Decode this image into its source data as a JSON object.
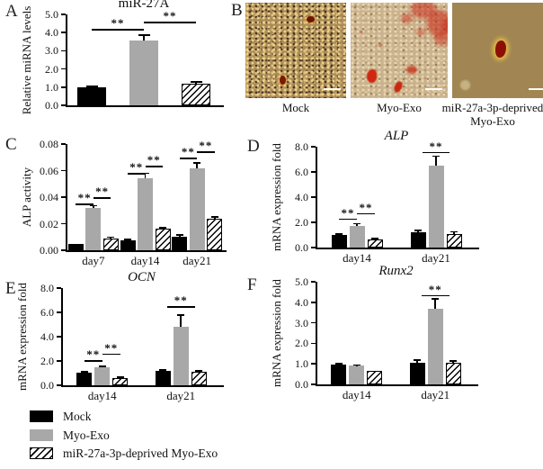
{
  "figure": {
    "panel_labels": [
      "A",
      "B",
      "C",
      "D",
      "E",
      "F"
    ],
    "colors": {
      "bar_black": "#000000",
      "bar_gray": "#a8a8a8",
      "hatch_fg": "#000000",
      "hatch_bg": "#ffffff",
      "stain_red": "#c2331d",
      "axis": "#000000"
    },
    "legend": [
      {
        "label": "Mock",
        "style": "black"
      },
      {
        "label": "Myo-Exo",
        "style": "gray"
      },
      {
        "label": "miR-27a-3p-deprived Myo-Exo",
        "style": "hatch"
      }
    ],
    "significance_symbol": "**"
  },
  "microscopy": {
    "panel": "B",
    "images": [
      {
        "caption": "Mock",
        "caption2": ""
      },
      {
        "caption": "Myo-Exo",
        "caption2": ""
      },
      {
        "caption": "miR-27a-3p-deprived",
        "caption2": "Myo-Exo"
      }
    ]
  },
  "chart_data": [
    {
      "panel": "A",
      "type": "bar",
      "title": "miR-27A",
      "title_style": "normal",
      "ylabel": "Relative miRNA levels",
      "ylim": [
        0,
        5
      ],
      "yticks": [
        "0.0",
        "1.0",
        "2.0",
        "3.0",
        "4.0",
        "5.0"
      ],
      "grid": false,
      "categories": [
        ""
      ],
      "series": [
        {
          "name": "Mock",
          "style": "black",
          "values": [
            0.98
          ],
          "errors": [
            0.06
          ]
        },
        {
          "name": "Myo-Exo",
          "style": "gray",
          "values": [
            3.55
          ],
          "errors": [
            0.3
          ]
        },
        {
          "name": "miR-27a-3p-deprived Myo-Exo",
          "style": "hatch",
          "values": [
            1.2
          ],
          "errors": [
            0.1
          ]
        }
      ],
      "sig": [
        {
          "group": 0,
          "from": 0,
          "to": 1,
          "y": 4.2,
          "label": "**"
        },
        {
          "group": 0,
          "from": 1,
          "to": 2,
          "y": 4.6,
          "label": "**"
        }
      ]
    },
    {
      "panel": "C",
      "type": "bar",
      "title": "",
      "title_style": "normal",
      "ylabel": "ALP activity",
      "ylim": [
        0,
        0.08
      ],
      "yticks": [
        "0.00",
        "0.02",
        "0.04",
        "0.06",
        "0.08"
      ],
      "grid": false,
      "categories": [
        "day7",
        "day14",
        "day21"
      ],
      "series": [
        {
          "name": "Mock",
          "style": "black",
          "values": [
            0.005,
            0.0075,
            0.0105
          ],
          "errors": [
            0,
            0.0008,
            0.0008
          ]
        },
        {
          "name": "Myo-Exo",
          "style": "gray",
          "values": [
            0.032,
            0.054,
            0.062
          ],
          "errors": [
            0.0015,
            0.004,
            0.004
          ]
        },
        {
          "name": "miR-27a-3p-deprived Myo-Exo",
          "style": "hatch",
          "values": [
            0.009,
            0.016,
            0.024
          ],
          "errors": [
            0.0008,
            0.001,
            0.0012
          ]
        }
      ],
      "sig": [
        {
          "group": 0,
          "from": 0,
          "to": 1,
          "y": 0.035,
          "label": "**"
        },
        {
          "group": 0,
          "from": 1,
          "to": 2,
          "y": 0.04,
          "label": "**"
        },
        {
          "group": 1,
          "from": 0,
          "to": 1,
          "y": 0.058,
          "label": "**"
        },
        {
          "group": 1,
          "from": 1,
          "to": 2,
          "y": 0.0635,
          "label": "**"
        },
        {
          "group": 2,
          "from": 0,
          "to": 1,
          "y": 0.0695,
          "label": "**"
        },
        {
          "group": 2,
          "from": 1,
          "to": 2,
          "y": 0.0745,
          "label": "**"
        }
      ]
    },
    {
      "panel": "D",
      "type": "bar",
      "title": "ALP",
      "title_style": "italic",
      "ylabel": "mRNA expression fold",
      "ylim": [
        0,
        8
      ],
      "yticks": [
        "0.0",
        "2.0",
        "4.0",
        "6.0",
        "8.0"
      ],
      "grid": false,
      "categories": [
        "day14",
        "day21"
      ],
      "series": [
        {
          "name": "Mock",
          "style": "black",
          "values": [
            1.0,
            1.2
          ],
          "errors": [
            0.08,
            0.15
          ]
        },
        {
          "name": "Myo-Exo",
          "style": "gray",
          "values": [
            1.7,
            6.5
          ],
          "errors": [
            0.2,
            0.75
          ]
        },
        {
          "name": "miR-27a-3p-deprived Myo-Exo",
          "style": "hatch",
          "values": [
            0.65,
            1.1
          ],
          "errors": [
            0.05,
            0.15
          ]
        }
      ],
      "sig": [
        {
          "group": 0,
          "from": 0,
          "to": 1,
          "y": 2.3,
          "label": "**"
        },
        {
          "group": 0,
          "from": 1,
          "to": 2,
          "y": 2.75,
          "label": "**"
        },
        {
          "group": 1,
          "from": 1,
          "to": 1,
          "y": 7.6,
          "label": "**"
        }
      ]
    },
    {
      "panel": "E",
      "type": "bar",
      "title": "OCN",
      "title_style": "italic",
      "ylabel": "mRNA expression fold",
      "ylim": [
        0,
        8
      ],
      "yticks": [
        "0.0",
        "2.0",
        "4.0",
        "6.0",
        "8.0"
      ],
      "grid": false,
      "categories": [
        "day14",
        "day21"
      ],
      "series": [
        {
          "name": "Mock",
          "style": "black",
          "values": [
            1.05,
            1.15
          ],
          "errors": [
            0.07,
            0.1
          ]
        },
        {
          "name": "Myo-Exo",
          "style": "gray",
          "values": [
            1.45,
            4.85
          ],
          "errors": [
            0.12,
            0.9
          ]
        },
        {
          "name": "miR-27a-3p-deprived Myo-Exo",
          "style": "hatch",
          "values": [
            0.6,
            1.1
          ],
          "errors": [
            0.05,
            0.08
          ]
        }
      ],
      "sig": [
        {
          "group": 0,
          "from": 0,
          "to": 1,
          "y": 2.05,
          "label": "**"
        },
        {
          "group": 0,
          "from": 1,
          "to": 2,
          "y": 2.6,
          "label": "**"
        },
        {
          "group": 1,
          "from": 1,
          "to": 1,
          "y": 6.5,
          "label": "**"
        }
      ]
    },
    {
      "panel": "F",
      "type": "bar",
      "title": "Runx2",
      "title_style": "italic",
      "ylabel": "mRNA expression fold",
      "ylim": [
        0,
        5
      ],
      "yticks": [
        "0.0",
        "1.0",
        "2.0",
        "3.0",
        "4.0",
        "5.0"
      ],
      "grid": false,
      "categories": [
        "day14",
        "day21"
      ],
      "series": [
        {
          "name": "Mock",
          "style": "black",
          "values": [
            0.97,
            1.05
          ],
          "errors": [
            0.04,
            0.12
          ]
        },
        {
          "name": "Myo-Exo",
          "style": "gray",
          "values": [
            0.9,
            3.7
          ],
          "errors": [
            0.04,
            0.45
          ]
        },
        {
          "name": "miR-27a-3p-deprived Myo-Exo",
          "style": "hatch",
          "values": [
            0.65,
            1.05
          ],
          "errors": [
            0,
            0.1
          ]
        }
      ],
      "sig": [
        {
          "group": 1,
          "from": 1,
          "to": 1,
          "y": 4.35,
          "label": "**"
        }
      ]
    }
  ]
}
